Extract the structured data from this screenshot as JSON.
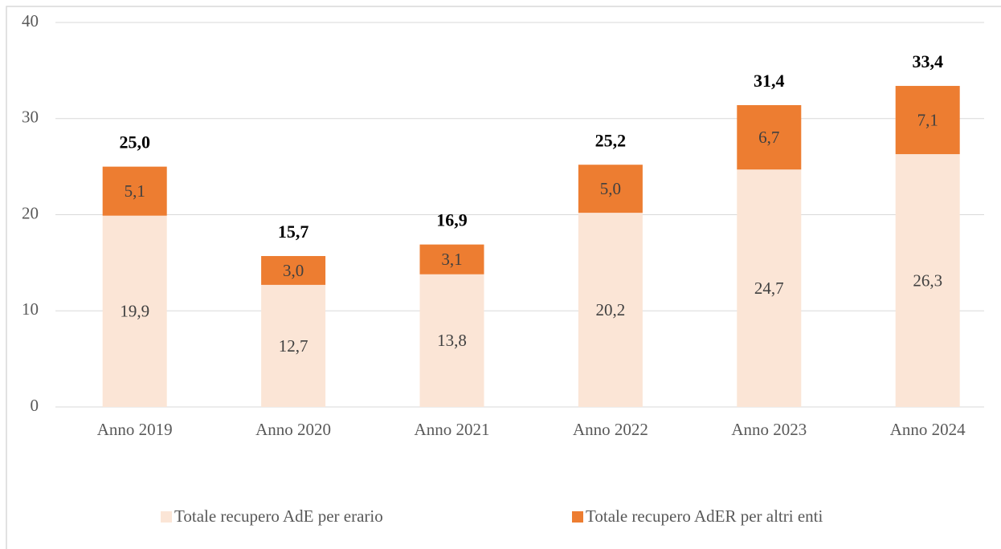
{
  "chart_data": {
    "type": "stacked_bar",
    "categories": [
      "Anno 2019",
      "Anno 2020",
      "Anno 2021",
      "Anno 2022",
      "Anno 2023",
      "Anno 2024"
    ],
    "series": [
      {
        "name": "Totale recupero AdE per erario",
        "color": "#fbe5d6",
        "values": [
          19.9,
          12.7,
          13.8,
          20.2,
          24.7,
          26.3
        ],
        "value_labels": [
          "19,9",
          "12,7",
          "13,8",
          "20,2",
          "24,7",
          "26,3"
        ]
      },
      {
        "name": "Totale recupero AdER per altri enti",
        "color": "#ed7d31",
        "values": [
          5.1,
          3.0,
          3.1,
          5.0,
          6.7,
          7.1
        ],
        "value_labels": [
          "5,1",
          "3,0",
          "3,1",
          "5,0",
          "6,7",
          "7,1"
        ]
      }
    ],
    "totals": [
      25.0,
      15.7,
      16.9,
      25.2,
      31.4,
      33.4
    ],
    "total_labels": [
      "25,0",
      "15,7",
      "16,9",
      "25,2",
      "31,4",
      "33,4"
    ],
    "ylim": [
      0,
      40
    ],
    "yticks": [
      0,
      10,
      20,
      30,
      40
    ],
    "grid": true,
    "legend": "bottom"
  }
}
